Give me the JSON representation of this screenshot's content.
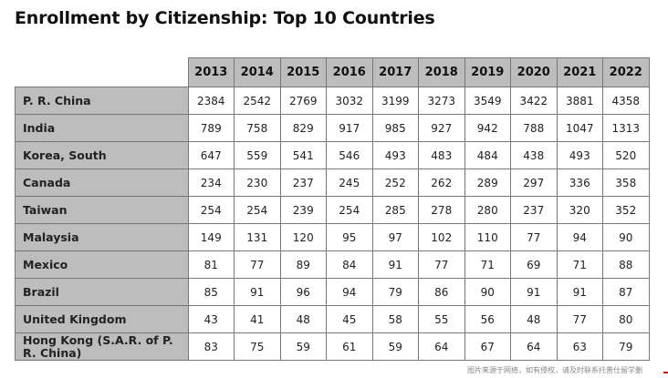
{
  "title": "Enrollment by Citizenship: Top 10 Countries",
  "table": {
    "columns": [
      "2013",
      "2014",
      "2015",
      "2016",
      "2017",
      "2018",
      "2019",
      "2020",
      "2021",
      "2022"
    ],
    "rows": [
      {
        "label": "P. R. China",
        "values": [
          "2384",
          "2542",
          "2769",
          "3032",
          "3199",
          "3273",
          "3549",
          "3422",
          "3881",
          "4358"
        ]
      },
      {
        "label": "India",
        "values": [
          "789",
          "758",
          "829",
          "917",
          "985",
          "927",
          "942",
          "788",
          "1047",
          "1313"
        ]
      },
      {
        "label": "Korea, South",
        "values": [
          "647",
          "559",
          "541",
          "546",
          "493",
          "483",
          "484",
          "438",
          "493",
          "520"
        ]
      },
      {
        "label": "Canada",
        "values": [
          "234",
          "230",
          "237",
          "245",
          "252",
          "262",
          "289",
          "297",
          "336",
          "358"
        ]
      },
      {
        "label": "Taiwan",
        "values": [
          "254",
          "254",
          "239",
          "254",
          "285",
          "278",
          "280",
          "237",
          "320",
          "352"
        ]
      },
      {
        "label": "Malaysia",
        "values": [
          "149",
          "131",
          "120",
          "95",
          "97",
          "102",
          "110",
          "77",
          "94",
          "90"
        ]
      },
      {
        "label": "Mexico",
        "values": [
          "81",
          "77",
          "89",
          "84",
          "91",
          "77",
          "71",
          "69",
          "71",
          "88"
        ]
      },
      {
        "label": "Brazil",
        "values": [
          "85",
          "91",
          "96",
          "94",
          "79",
          "86",
          "90",
          "91",
          "91",
          "87"
        ]
      },
      {
        "label": "United Kingdom",
        "values": [
          "43",
          "41",
          "48",
          "45",
          "58",
          "55",
          "56",
          "48",
          "77",
          "80"
        ]
      },
      {
        "label": "Hong Kong (S.A.R. of P. R. China)",
        "values": [
          "83",
          "75",
          "59",
          "61",
          "59",
          "64",
          "67",
          "64",
          "63",
          "79"
        ]
      }
    ]
  },
  "watermark": "图片来源于网络，如有侵权，请及时联系托普仕留学删",
  "colors": {
    "header_bg": "#bdbdbd",
    "border": "#777777"
  }
}
